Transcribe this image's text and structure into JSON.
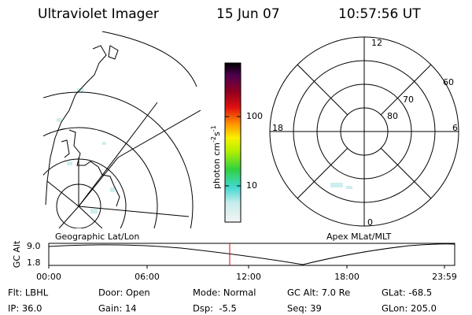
{
  "header": {
    "title": "Ultraviolet Imager",
    "date": "15 Jun 07",
    "time": "10:57:56 UT"
  },
  "left_map": {
    "label": "Geographic Lat/Lon"
  },
  "colorbar": {
    "unit": "photon cm",
    "unit_exp1": "-2",
    "unit_mid": "s",
    "unit_exp2": "-1",
    "ticks": [
      "100",
      "10"
    ]
  },
  "polar_map": {
    "label": "Apex MLat/MLT",
    "mlt_labels": [
      "12",
      "18",
      "6",
      "0"
    ],
    "lat_labels": [
      "60",
      "70",
      "80"
    ]
  },
  "altitude": {
    "ylabel": "GC Alt",
    "yticks": [
      "9.0",
      "1.8"
    ],
    "xticks": [
      "00:00",
      "06:00",
      "12:00",
      "18:00",
      "23:59"
    ]
  },
  "footer": {
    "rows": [
      [
        "Flt: LBHL",
        "Door: Open",
        "Mode: Normal",
        "GC Alt: 7.0 Re",
        "GLat: -68.5"
      ],
      [
        "IP: 36.0",
        "Gain: 14",
        "Dsp:  -5.5",
        "Seq: 39",
        "GLon: 205.0"
      ]
    ]
  }
}
